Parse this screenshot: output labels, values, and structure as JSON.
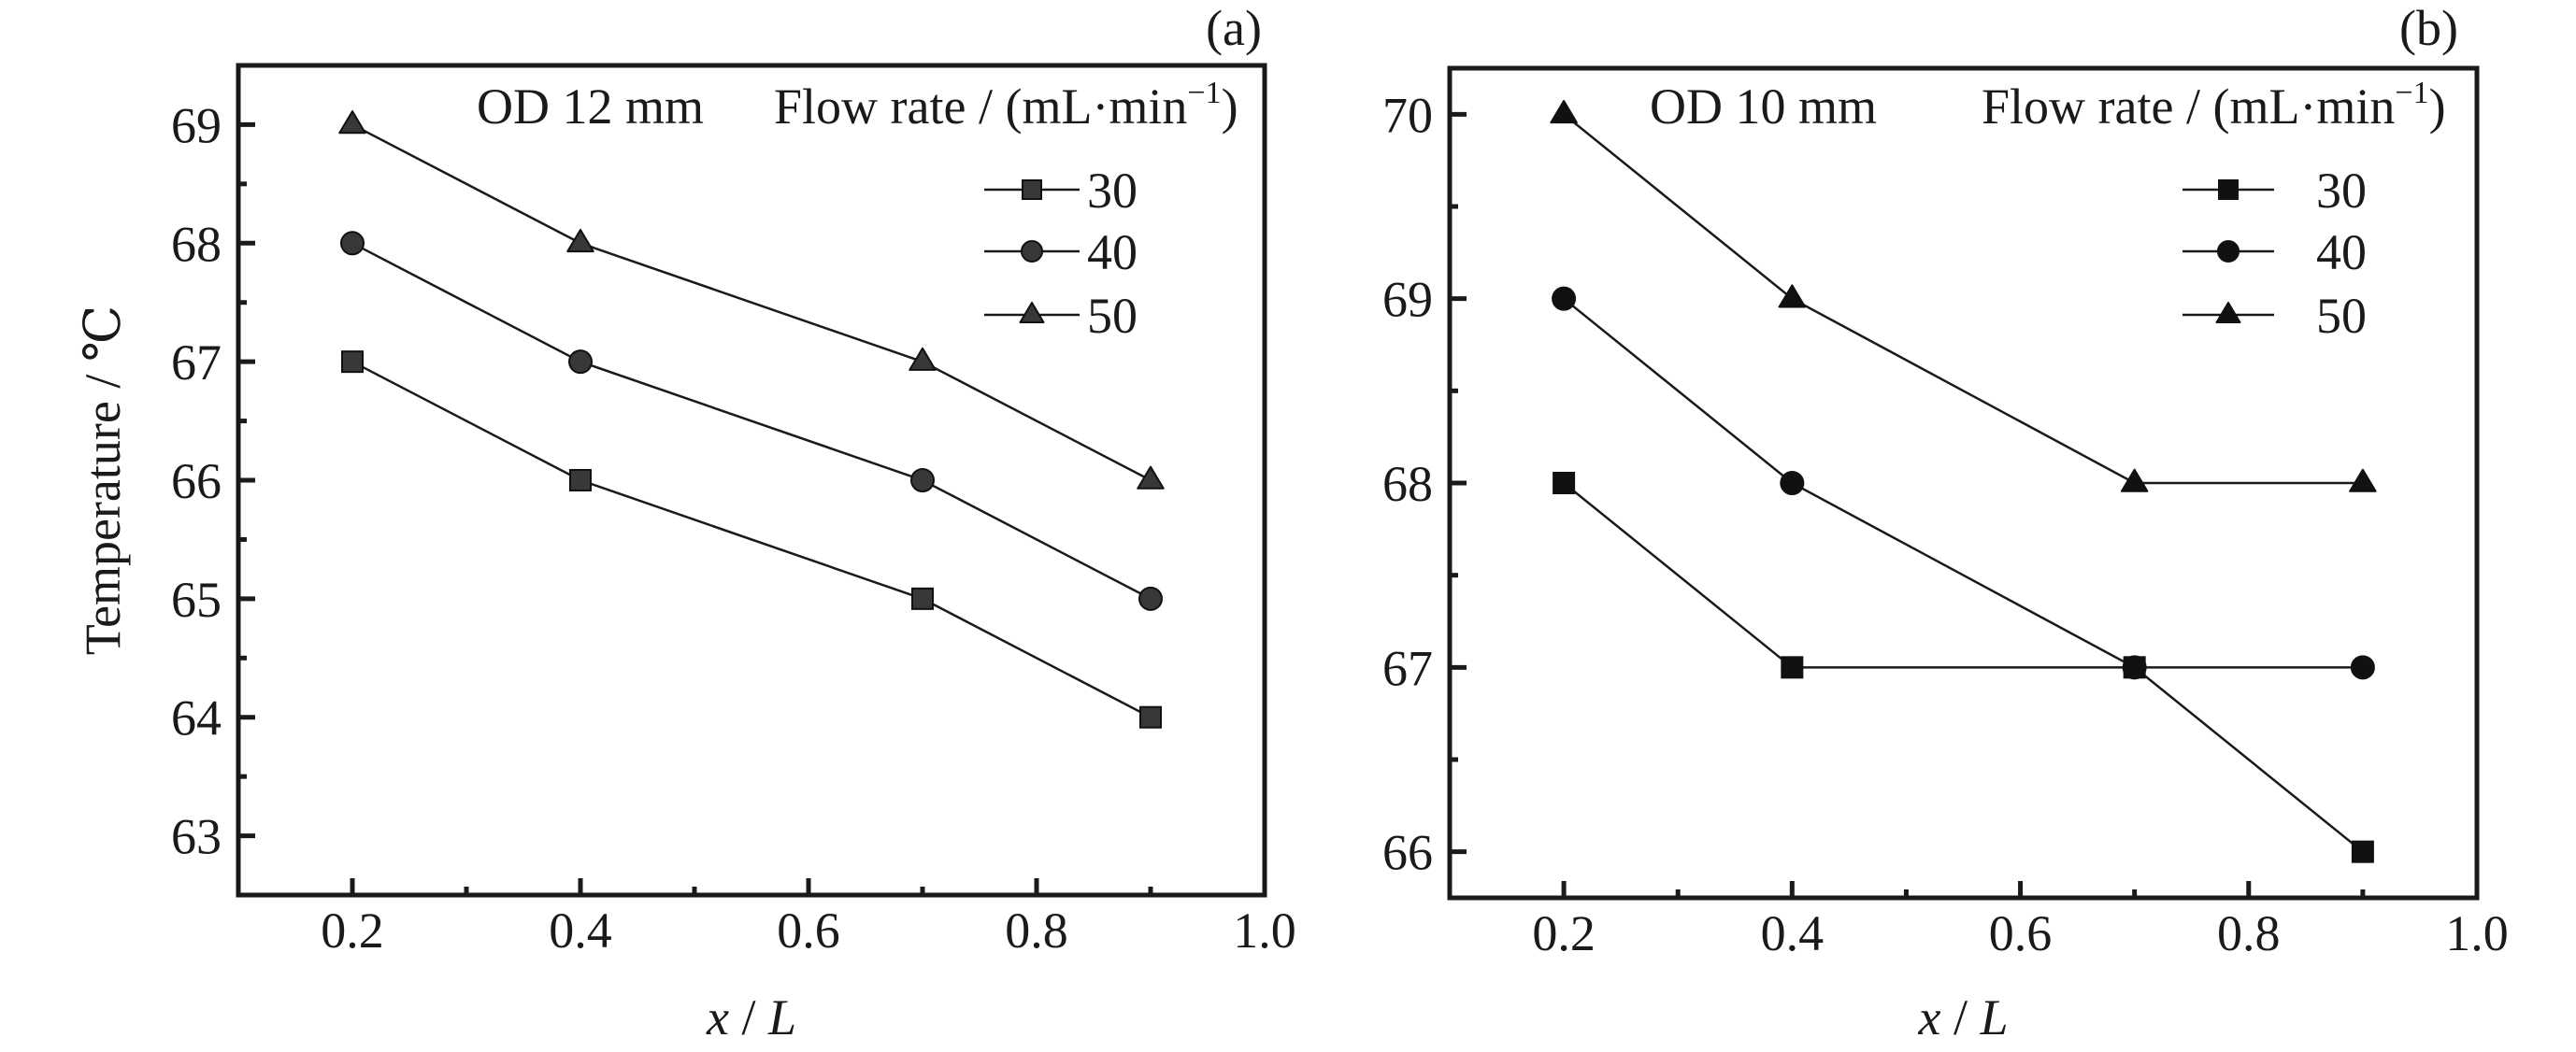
{
  "chart_data": [
    {
      "id": "a",
      "type": "line",
      "panel_label": "(a)",
      "annotation": "OD 12 mm",
      "legend_title": "Flow rate / (mL·min",
      "legend_title_sup": "−1",
      "legend_title_close": ")",
      "xlabel_var": "x",
      "xlabel_sep": " / ",
      "xlabel_unit": "L",
      "ylabel": "Temperature / ℃",
      "xlim": [
        0.1,
        1.0
      ],
      "ylim": [
        62.5,
        69.5
      ],
      "x_major_ticks": [
        0.2,
        0.4,
        0.6,
        0.8,
        1.0
      ],
      "x_tick_labels": [
        "0.2",
        "0.4",
        "0.6",
        "0.8",
        "1.0"
      ],
      "x_minor_ticks": [
        0.3,
        0.5,
        0.7,
        0.9
      ],
      "y_major_ticks": [
        63,
        64,
        65,
        66,
        67,
        68,
        69
      ],
      "y_tick_labels": [
        "63",
        "64",
        "65",
        "66",
        "67",
        "68",
        "69"
      ],
      "y_minor_ticks": [
        63.5,
        64.5,
        65.5,
        66.5,
        67.5,
        68.5
      ],
      "marker_fill": "#383838",
      "legend_placement": "top-right",
      "x": [
        0.2,
        0.4,
        0.7,
        0.9
      ],
      "series": [
        {
          "name": "30",
          "marker": "square",
          "values": [
            67,
            66,
            65,
            64
          ]
        },
        {
          "name": "40",
          "marker": "circle",
          "values": [
            68,
            67,
            66,
            65
          ]
        },
        {
          "name": "50",
          "marker": "triangle",
          "values": [
            69,
            68,
            67,
            66
          ]
        }
      ]
    },
    {
      "id": "b",
      "type": "line",
      "panel_label": "(b)",
      "annotation": "OD 10 mm",
      "legend_title": "Flow rate / (mL·min",
      "legend_title_sup": "−1",
      "legend_title_close": ")",
      "xlabel_var": "x",
      "xlabel_sep": " / ",
      "xlabel_unit": "L",
      "ylabel": "",
      "xlim": [
        0.1,
        1.0
      ],
      "ylim": [
        65.75,
        70.25
      ],
      "x_major_ticks": [
        0.2,
        0.4,
        0.6,
        0.8,
        1.0
      ],
      "x_tick_labels": [
        "0.2",
        "0.4",
        "0.6",
        "0.8",
        "1.0"
      ],
      "x_minor_ticks": [
        0.3,
        0.5,
        0.7,
        0.9
      ],
      "y_major_ticks": [
        66,
        67,
        68,
        69,
        70
      ],
      "y_tick_labels": [
        "66",
        "67",
        "68",
        "69",
        "70"
      ],
      "y_minor_ticks": [
        66.5,
        67.5,
        68.5,
        69.5
      ],
      "marker_fill": "#111111",
      "legend_placement": "top-right",
      "x": [
        0.2,
        0.4,
        0.7,
        0.9
      ],
      "series": [
        {
          "name": "30",
          "marker": "square",
          "values": [
            68,
            67,
            67,
            66
          ]
        },
        {
          "name": "40",
          "marker": "circle",
          "values": [
            69,
            68,
            67,
            67
          ]
        },
        {
          "name": "50",
          "marker": "triangle",
          "values": [
            70,
            69,
            68,
            68
          ]
        }
      ]
    }
  ]
}
